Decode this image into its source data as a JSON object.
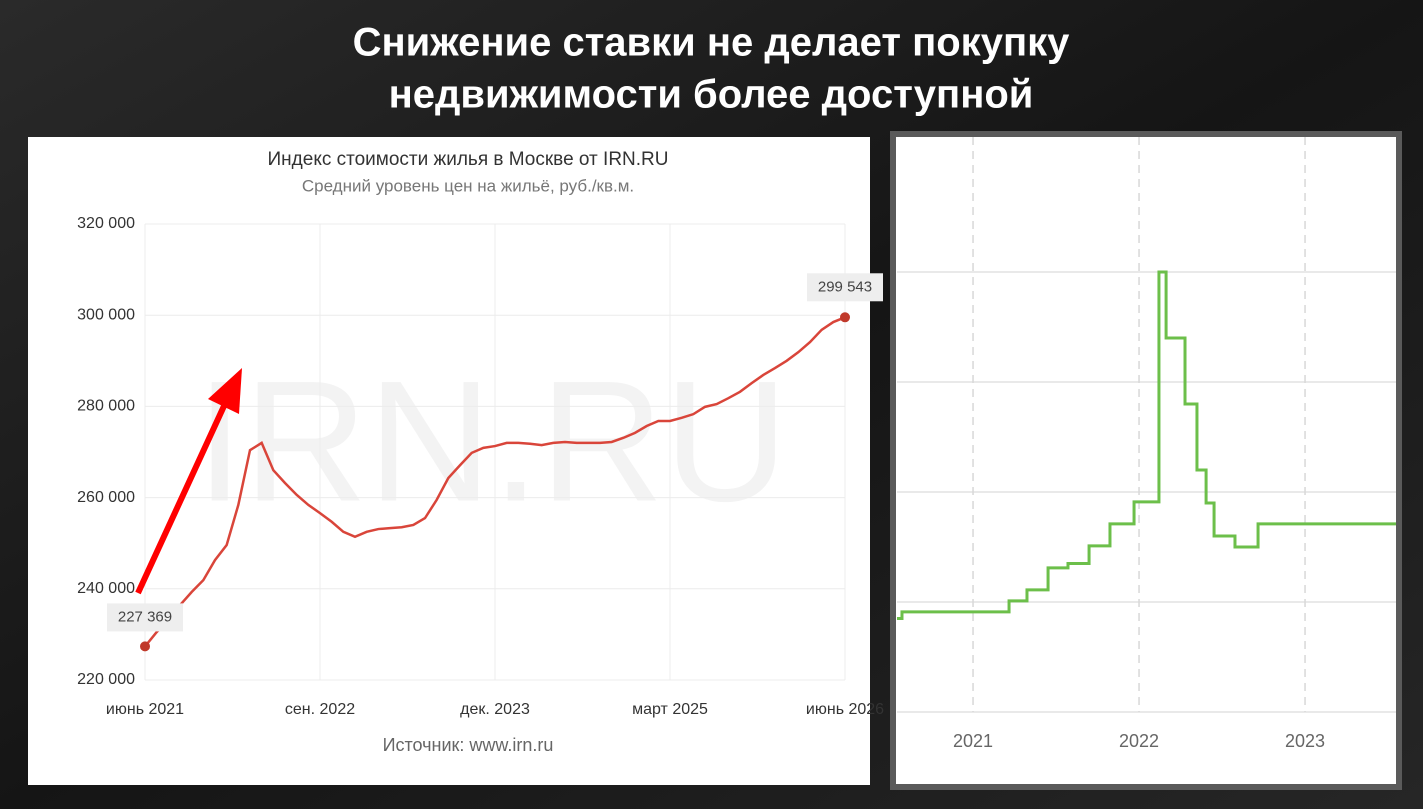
{
  "slide": {
    "title_lines": [
      "Снижение ставки не делает покупку",
      "недвижимости более доступной"
    ]
  },
  "chart_data": [
    {
      "type": "line",
      "title": "Индекс стоимости жилья в Москве от IRN.RU",
      "subtitle": "Средний уровень цен на жильё, руб./кв.м.",
      "source": "Источник: www.irn.ru",
      "watermark": "IRN.RU",
      "color": "#d9453a",
      "categories": [
        "июнь 2021",
        null,
        null,
        null,
        null,
        null,
        null,
        null,
        null,
        null,
        null,
        null,
        null,
        null,
        null,
        "сен. 2022",
        null,
        null,
        null,
        null,
        null,
        null,
        null,
        null,
        null,
        null,
        null,
        null,
        null,
        null,
        "дек. 2023",
        null,
        null,
        null,
        null,
        null,
        null,
        null,
        null,
        null,
        null,
        null,
        null,
        null,
        null,
        "март 2025",
        null,
        null,
        null,
        null,
        null,
        null,
        null,
        null,
        null,
        null,
        null,
        null,
        null,
        null,
        "июнь 2026"
      ],
      "values": [
        227369,
        230500,
        233200,
        236400,
        239300,
        241900,
        246300,
        249600,
        258400,
        270400,
        272000,
        266000,
        263200,
        260600,
        258400,
        256600,
        254700,
        252500,
        251400,
        252500,
        253100,
        253300,
        253500,
        254000,
        255500,
        259500,
        264300,
        267100,
        269800,
        270900,
        271300,
        272000,
        272000,
        271800,
        271500,
        272000,
        272200,
        272000,
        272000,
        272000,
        272200,
        273100,
        274200,
        275700,
        276800,
        276800,
        277500,
        278300,
        279900,
        280500,
        281800,
        283200,
        285100,
        286900,
        288400,
        290000,
        291900,
        294100,
        296800,
        298500,
        299543
      ],
      "value_labels": [
        "227 369",
        null,
        null,
        null,
        null,
        null,
        null,
        null,
        null,
        null,
        null,
        null,
        null,
        null,
        null,
        null,
        null,
        null,
        null,
        null,
        null,
        null,
        null,
        null,
        null,
        null,
        null,
        null,
        null,
        null,
        null,
        null,
        null,
        null,
        null,
        null,
        null,
        null,
        null,
        null,
        null,
        null,
        null,
        null,
        null,
        null,
        null,
        null,
        null,
        null,
        null,
        null,
        null,
        null,
        null,
        null,
        null,
        null,
        null,
        null,
        "299 543"
      ],
      "ylim": [
        220000,
        320000
      ],
      "yticks": [
        {
          "value": 220000,
          "label": "220 000"
        },
        {
          "value": 240000,
          "label": "240 000"
        },
        {
          "value": 260000,
          "label": "260 000"
        },
        {
          "value": 280000,
          "label": "280 000"
        },
        {
          "value": 300000,
          "label": "300 000"
        },
        {
          "value": 320000,
          "label": "320 000"
        }
      ],
      "grid": true
    },
    {
      "type": "step",
      "color": "#6cbf4a",
      "x": [
        2020.542,
        2020.572,
        2021.217,
        2021.325,
        2021.452,
        2021.572,
        2021.699,
        2021.825,
        2021.97,
        2022.12,
        2022.163,
        2022.277,
        2022.349,
        2022.404,
        2022.452,
        2022.578,
        2022.717,
        2023.548
      ],
      "values": [
        0.85,
        0.91,
        1.01,
        1.11,
        1.31,
        1.35,
        1.51,
        1.71,
        1.91,
        4.0,
        3.4,
        2.8,
        2.2,
        1.9,
        1.6,
        1.5,
        1.71,
        1.71
      ],
      "xlim": [
        2020.542,
        2023.548
      ],
      "xticks": [
        2021,
        2022,
        2023
      ],
      "ylim": [
        0,
        5
      ],
      "ygrid": [
        0,
        1,
        2,
        3,
        4
      ],
      "grid": true
    }
  ]
}
